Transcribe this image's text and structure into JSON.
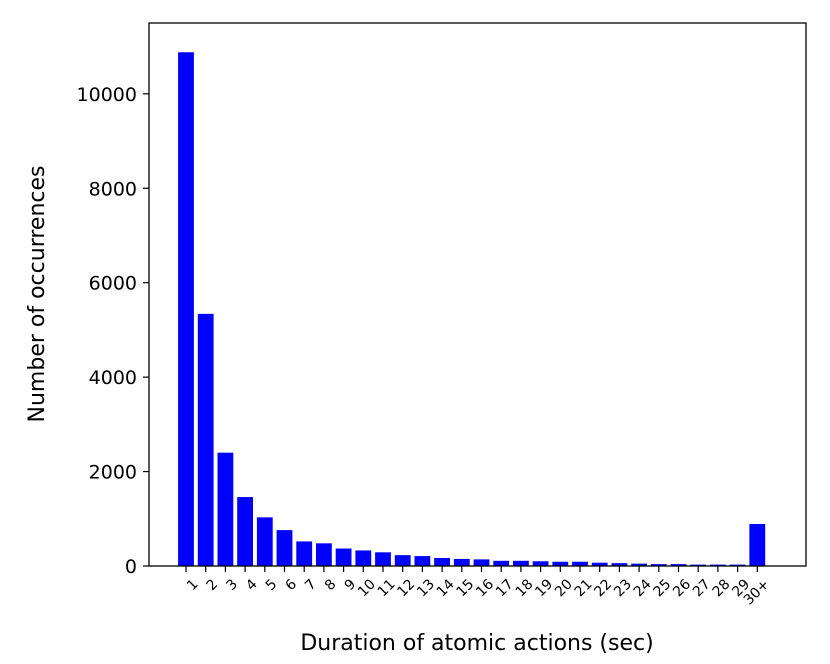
{
  "chart_data": {
    "type": "bar",
    "title": "",
    "xlabel": "Duration of atomic actions (sec)",
    "ylabel": "Number of occurrences",
    "categories": [
      "1",
      "2",
      "3",
      "4",
      "5",
      "6",
      "7",
      "8",
      "9",
      "10",
      "11",
      "12",
      "13",
      "14",
      "15",
      "16",
      "17",
      "18",
      "19",
      "20",
      "21",
      "22",
      "23",
      "24",
      "25",
      "26",
      "27",
      "28",
      "29",
      "30+"
    ],
    "values": [
      10880,
      5340,
      2400,
      1460,
      1030,
      760,
      520,
      480,
      370,
      330,
      290,
      230,
      210,
      170,
      150,
      140,
      110,
      110,
      100,
      90,
      90,
      70,
      60,
      50,
      40,
      40,
      30,
      30,
      30,
      890
    ],
    "ylim": [
      0,
      11500
    ],
    "yticks": [
      0,
      2000,
      4000,
      6000,
      8000,
      10000
    ],
    "grid": false,
    "bar_color": "#0000ff"
  }
}
